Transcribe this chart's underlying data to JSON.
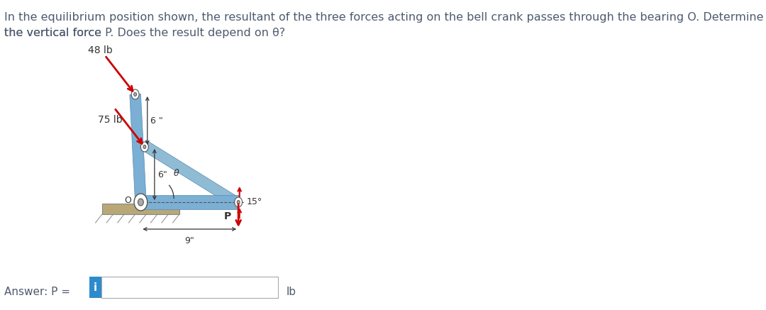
{
  "title_line1": "In the equilibrium position shown, the resultant of the three forces acting on the bell crank passes through the bearing O. Determine",
  "title_line2": "the vertical force P. Does the result depend on θ?",
  "title_color": "#4d5a6e",
  "title_fontsize": 11.5,
  "bg_color": "#ffffff",
  "answer_label": "Answer: P = ",
  "answer_unit": "lb",
  "answer_box_color": "#2e8bcb",
  "answer_box_text": "i",
  "force_48lb": "48 lb",
  "force_75lb": "75 lb",
  "dim_6top": "6 \"",
  "dim_6bottom": "6\"",
  "dim_9": "9\"",
  "angle_label": "θ",
  "angle_15": "15°",
  "force_P": "P",
  "crank_body_color": "#7bafd4",
  "crank_edge_color": "#5a8ab0",
  "crank_dark": "#4a7a9b",
  "ground_color": "#c8a96e",
  "ground_hatch_color": "#a08050",
  "red_arrow_color": "#cc0000",
  "dim_line_color": "#333333"
}
